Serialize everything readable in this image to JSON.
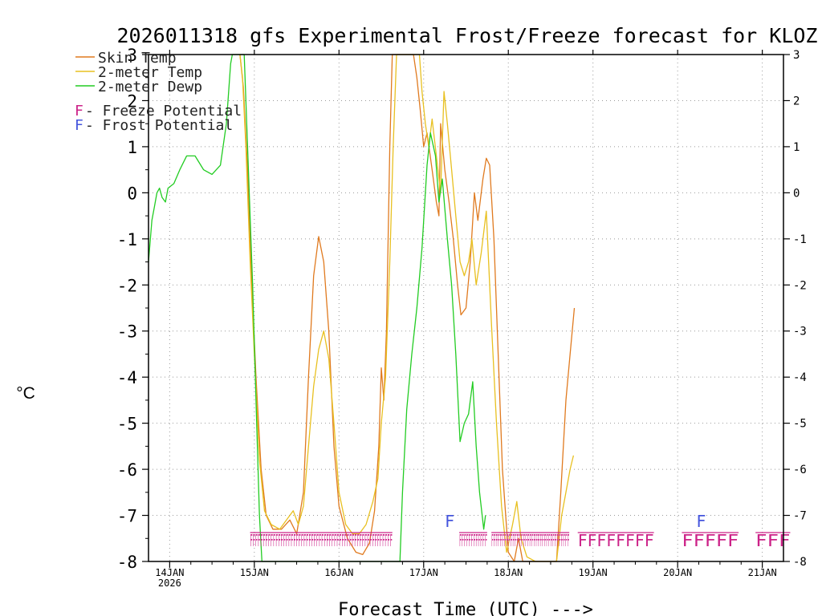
{
  "chart_data": {
    "type": "line",
    "title": "2026011318 gfs Experimental Frost/Freeze forecast for KLOZ",
    "ylabel": "°C",
    "xlabel": "Forecast Time (UTC) --->",
    "ylim": [
      -8,
      3
    ],
    "xlim": [
      13.75,
      21.25
    ],
    "y_ticks": [
      "-8",
      "-7",
      "-6",
      "-5",
      "-4",
      "-3",
      "-2",
      "-1",
      "0",
      "1",
      "2",
      "3"
    ],
    "x_ticks": [
      {
        "day": 14,
        "label": "14JAN",
        "sub": "2026"
      },
      {
        "day": 15,
        "label": "15JAN",
        "sub": ""
      },
      {
        "day": 16,
        "label": "16JAN",
        "sub": ""
      },
      {
        "day": 17,
        "label": "17JAN",
        "sub": ""
      },
      {
        "day": 18,
        "label": "18JAN",
        "sub": ""
      },
      {
        "day": 19,
        "label": "19JAN",
        "sub": ""
      },
      {
        "day": 20,
        "label": "20JAN",
        "sub": ""
      },
      {
        "day": 21,
        "label": "21JAN",
        "sub": ""
      }
    ],
    "grid": true,
    "legend": [
      {
        "label": "Skin Temp",
        "color": "#e07a1f"
      },
      {
        "label": "2-meter Temp",
        "color": "#e8c020"
      },
      {
        "label": "2-meter Dewp",
        "color": "#22cc22"
      }
    ],
    "potential_legend": [
      {
        "marker": "F",
        "text": " - Freeze Potential",
        "color": "#cc2288"
      },
      {
        "marker": "F",
        "text": " - Frost Potential",
        "color": "#4455dd"
      }
    ],
    "series": [
      {
        "name": "Skin Temp",
        "color": "#e07a1f",
        "points": [
          [
            14.83,
            3.0
          ],
          [
            14.87,
            2.3
          ],
          [
            14.92,
            0.5
          ],
          [
            14.97,
            -2.0
          ],
          [
            15.02,
            -4.0
          ],
          [
            15.08,
            -6.0
          ],
          [
            15.14,
            -7.0
          ],
          [
            15.22,
            -7.3
          ],
          [
            15.32,
            -7.3
          ],
          [
            15.42,
            -7.1
          ],
          [
            15.5,
            -7.4
          ],
          [
            15.58,
            -6.5
          ],
          [
            15.64,
            -4.0
          ],
          [
            15.7,
            -1.8
          ],
          [
            15.76,
            -0.95
          ],
          [
            15.82,
            -1.5
          ],
          [
            15.88,
            -3.0
          ],
          [
            15.94,
            -5.5
          ],
          [
            16.0,
            -6.8
          ],
          [
            16.1,
            -7.5
          ],
          [
            16.2,
            -7.8
          ],
          [
            16.28,
            -7.85
          ],
          [
            16.36,
            -7.6
          ],
          [
            16.42,
            -6.9
          ],
          [
            16.47,
            -5.5
          ],
          [
            16.5,
            -3.8
          ],
          [
            16.53,
            -4.5
          ],
          [
            16.56,
            -3.0
          ],
          [
            16.6,
            1.0
          ],
          [
            16.63,
            3.0
          ],
          [
            16.88,
            3.0
          ],
          [
            16.92,
            2.5
          ],
          [
            16.96,
            1.8
          ],
          [
            17.0,
            1.0
          ],
          [
            17.04,
            1.3
          ],
          [
            17.1,
            0.5
          ],
          [
            17.15,
            -0.2
          ],
          [
            17.18,
            -0.5
          ],
          [
            17.2,
            1.5
          ],
          [
            17.25,
            0.5
          ],
          [
            17.3,
            -0.2
          ],
          [
            17.35,
            -1.0
          ],
          [
            17.4,
            -2.0
          ],
          [
            17.44,
            -2.65
          ],
          [
            17.5,
            -2.5
          ],
          [
            17.55,
            -1.5
          ],
          [
            17.6,
            0.0
          ],
          [
            17.64,
            -0.6
          ],
          [
            17.7,
            0.3
          ],
          [
            17.74,
            0.75
          ],
          [
            17.78,
            0.6
          ],
          [
            17.83,
            -1.0
          ],
          [
            17.88,
            -3.5
          ],
          [
            17.93,
            -6.0
          ],
          [
            18.0,
            -7.8
          ],
          [
            18.07,
            -8.0
          ],
          [
            18.12,
            -7.5
          ],
          [
            18.17,
            -8.0
          ],
          [
            18.25,
            -8.0
          ],
          [
            18.35,
            -8.0
          ],
          [
            18.5,
            -8.0
          ],
          [
            18.57,
            -8.0
          ],
          [
            18.62,
            -6.5
          ],
          [
            18.68,
            -4.5
          ],
          [
            18.73,
            -3.5
          ],
          [
            18.78,
            -2.5
          ]
        ]
      },
      {
        "name": "2-meter Temp",
        "color": "#e8c020",
        "points": [
          [
            14.83,
            3.0
          ],
          [
            14.86,
            2.5
          ],
          [
            14.9,
            1.0
          ],
          [
            14.95,
            -1.5
          ],
          [
            15.0,
            -3.5
          ],
          [
            15.06,
            -5.8
          ],
          [
            15.12,
            -6.9
          ],
          [
            15.2,
            -7.2
          ],
          [
            15.3,
            -7.3
          ],
          [
            15.38,
            -7.1
          ],
          [
            15.46,
            -6.9
          ],
          [
            15.52,
            -7.2
          ],
          [
            15.58,
            -6.8
          ],
          [
            15.64,
            -5.5
          ],
          [
            15.7,
            -4.2
          ],
          [
            15.76,
            -3.4
          ],
          [
            15.82,
            -3.0
          ],
          [
            15.88,
            -3.6
          ],
          [
            15.94,
            -5.0
          ],
          [
            16.0,
            -6.5
          ],
          [
            16.08,
            -7.2
          ],
          [
            16.16,
            -7.4
          ],
          [
            16.24,
            -7.4
          ],
          [
            16.32,
            -7.2
          ],
          [
            16.4,
            -6.7
          ],
          [
            16.46,
            -6.2
          ],
          [
            16.5,
            -5.0
          ],
          [
            16.55,
            -4.0
          ],
          [
            16.6,
            -1.5
          ],
          [
            16.64,
            1.0
          ],
          [
            16.68,
            3.0
          ],
          [
            16.95,
            3.0
          ],
          [
            16.98,
            2.2
          ],
          [
            17.02,
            1.5
          ],
          [
            17.06,
            1.0
          ],
          [
            17.1,
            1.6
          ],
          [
            17.15,
            0.8
          ],
          [
            17.2,
            0.0
          ],
          [
            17.24,
            2.2
          ],
          [
            17.28,
            1.5
          ],
          [
            17.33,
            0.5
          ],
          [
            17.38,
            -0.5
          ],
          [
            17.43,
            -1.5
          ],
          [
            17.48,
            -1.8
          ],
          [
            17.53,
            -1.5
          ],
          [
            17.57,
            -1.0
          ],
          [
            17.62,
            -2.0
          ],
          [
            17.68,
            -1.3
          ],
          [
            17.74,
            -0.4
          ],
          [
            17.8,
            -2.8
          ],
          [
            17.86,
            -5.0
          ],
          [
            17.92,
            -6.8
          ],
          [
            17.98,
            -7.8
          ],
          [
            18.05,
            -7.2
          ],
          [
            18.1,
            -6.7
          ],
          [
            18.15,
            -7.5
          ],
          [
            18.22,
            -7.9
          ],
          [
            18.32,
            -8.0
          ],
          [
            18.45,
            -8.0
          ],
          [
            18.57,
            -8.0
          ],
          [
            18.63,
            -7.0
          ],
          [
            18.68,
            -6.5
          ],
          [
            18.73,
            -6.0
          ],
          [
            18.77,
            -5.7
          ]
        ]
      },
      {
        "name": "2-meter Dewp",
        "color": "#22cc22",
        "points": [
          [
            13.75,
            -1.5
          ],
          [
            13.79,
            -0.6
          ],
          [
            13.82,
            -0.3
          ],
          [
            13.85,
            0.0
          ],
          [
            13.88,
            0.1
          ],
          [
            13.91,
            -0.1
          ],
          [
            13.95,
            -0.2
          ],
          [
            13.98,
            0.1
          ],
          [
            14.05,
            0.2
          ],
          [
            14.12,
            0.5
          ],
          [
            14.2,
            0.8
          ],
          [
            14.3,
            0.8
          ],
          [
            14.4,
            0.5
          ],
          [
            14.5,
            0.4
          ],
          [
            14.6,
            0.6
          ],
          [
            14.67,
            1.5
          ],
          [
            14.72,
            2.8
          ],
          [
            14.74,
            3.0
          ],
          [
            14.88,
            3.0
          ],
          [
            14.9,
            2.0
          ],
          [
            14.94,
            0.0
          ],
          [
            14.98,
            -2.0
          ],
          [
            15.02,
            -4.5
          ],
          [
            15.06,
            -7.0
          ],
          [
            15.09,
            -8.0
          ],
          [
            16.72,
            -8.0
          ],
          [
            16.75,
            -6.5
          ],
          [
            16.8,
            -4.7
          ],
          [
            16.86,
            -3.5
          ],
          [
            16.92,
            -2.5
          ],
          [
            16.98,
            -1.2
          ],
          [
            17.04,
            0.6
          ],
          [
            17.08,
            1.3
          ],
          [
            17.14,
            0.8
          ],
          [
            17.18,
            -0.2
          ],
          [
            17.22,
            0.3
          ],
          [
            17.28,
            -1.0
          ],
          [
            17.33,
            -2.0
          ],
          [
            17.38,
            -3.5
          ],
          [
            17.43,
            -5.4
          ],
          [
            17.48,
            -5.0
          ],
          [
            17.53,
            -4.8
          ],
          [
            17.58,
            -4.1
          ],
          [
            17.62,
            -5.5
          ],
          [
            17.66,
            -6.5
          ],
          [
            17.71,
            -7.3
          ],
          [
            17.73,
            -7.0
          ]
        ]
      }
    ],
    "freeze_markers": [
      {
        "text": "FFFFFFFFFFFFFFFFFFFFFFFFFFFFFFFFFFFFFFFFFFFFFFFFFFFFFFFF",
        "start_day": 14.95,
        "end_day": 16.63
      },
      {
        "text": "FFFFFFFFFFFF",
        "start_day": 17.42,
        "end_day": 17.75
      },
      {
        "text": "FFFFFFFFFFFFFFFFFFFFFFFFFFFFFFFFFFFFF",
        "start_day": 17.8,
        "end_day": 18.72
      },
      {
        "text": "FFFFFFFF",
        "start_day": 18.82,
        "end_day": 19.72
      },
      {
        "text": "FFFFF",
        "start_day": 20.05,
        "end_day": 20.72
      },
      {
        "text": "FFF",
        "start_day": 20.92,
        "end_day": 21.33
      }
    ],
    "frost_markers": [
      {
        "text": "F",
        "day": 17.25
      },
      {
        "text": "F",
        "day": 20.22
      }
    ]
  }
}
